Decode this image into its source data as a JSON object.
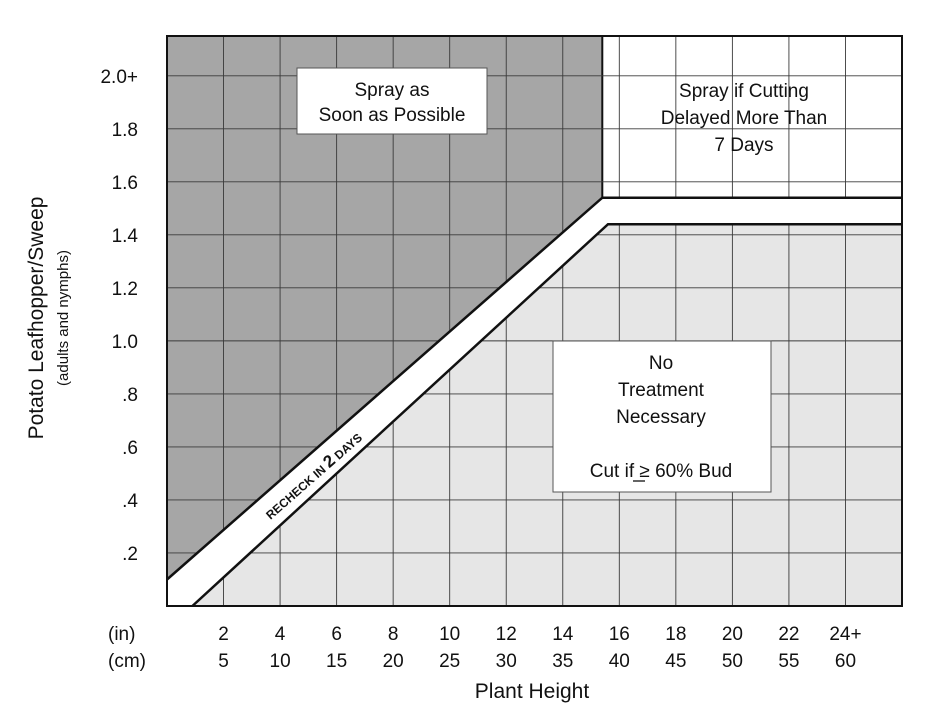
{
  "chart_data": {
    "type": "area",
    "title": "",
    "xlabel": "Plant Height",
    "ylabel": "Potato Leafhopper/Sweep",
    "ylabel_sub": "(adults and nymphs)",
    "x_unit_labels": [
      "(in)",
      "(cm)"
    ],
    "x_ticks": [
      {
        "in": "2",
        "cm": "5"
      },
      {
        "in": "4",
        "cm": "10"
      },
      {
        "in": "6",
        "cm": "15"
      },
      {
        "in": "8",
        "cm": "20"
      },
      {
        "in": "10",
        "cm": "25"
      },
      {
        "in": "12",
        "cm": "30"
      },
      {
        "in": "14",
        "cm": "35"
      },
      {
        "in": "16",
        "cm": "40"
      },
      {
        "in": "18",
        "cm": "45"
      },
      {
        "in": "20",
        "cm": "50"
      },
      {
        "in": "22",
        "cm": "55"
      },
      {
        "in": "24+",
        "cm": "60"
      }
    ],
    "y_ticks": [
      {
        "value": 0.2,
        "label": ".2"
      },
      {
        "value": 0.4,
        "label": ".4"
      },
      {
        "value": 0.6,
        "label": ".6"
      },
      {
        "value": 0.8,
        "label": ".8"
      },
      {
        "value": 1.0,
        "label": "1.0"
      },
      {
        "value": 1.2,
        "label": "1.2"
      },
      {
        "value": 1.4,
        "label": "1.4"
      },
      {
        "value": 1.6,
        "label": "1.6"
      },
      {
        "value": 1.8,
        "label": "1.8"
      },
      {
        "value": 2.0,
        "label": "2.0+"
      }
    ],
    "xlim_in": [
      0,
      26
    ],
    "ylim": [
      0,
      2.15
    ],
    "grid": true,
    "zones": [
      {
        "name": "spray_now",
        "lines": [
          "Spray as",
          "Soon as Possible"
        ],
        "color": "#a6a6a6"
      },
      {
        "name": "spray_if_delayed",
        "lines": [
          "Spray if Cutting",
          "Delayed More Than",
          "7 Days"
        ],
        "color": "#ffffff"
      },
      {
        "name": "no_treatment",
        "lines": [
          "No",
          "Treatment",
          "Necessary"
        ],
        "note": "Cut if ≥ 60% Bud",
        "color": "#e6e6e6"
      }
    ],
    "recheck_band": {
      "label_prefix": "RECHECK IN ",
      "label_number": "2",
      "label_suffix": " DAYS",
      "upper_boundary": [
        [
          0,
          0.1
        ],
        [
          15.4,
          1.54
        ],
        [
          26,
          1.54
        ]
      ],
      "lower_boundary": [
        [
          0.9,
          0.0
        ],
        [
          15.6,
          1.44
        ],
        [
          26,
          1.44
        ]
      ]
    }
  }
}
